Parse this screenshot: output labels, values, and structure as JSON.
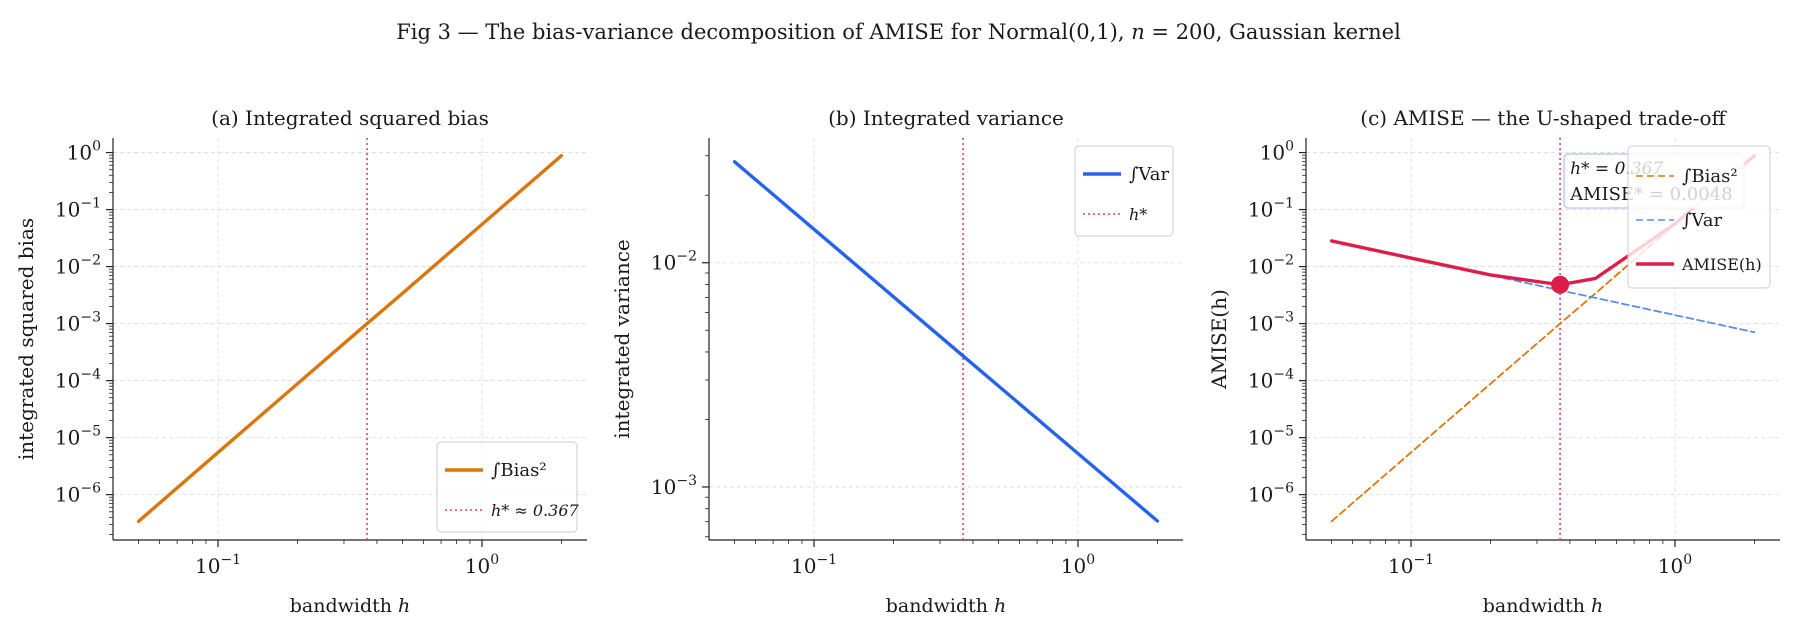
{
  "figure": {
    "suptitle": "Fig 3 — The bias-variance decomposition of AMISE for Normal(0,1), n = 200, Gaussian kernel"
  },
  "colors": {
    "bias": "#d9770e",
    "variance": "#2563eb",
    "amise": "#dc1e4a",
    "hstar": "#e0435b",
    "grid": "#d9d9d9"
  },
  "chart_data": [
    {
      "type": "line",
      "title": "(a) Integrated squared bias",
      "xlabel": "bandwidth h",
      "ylabel": "integrated squared bias",
      "xscale": "log",
      "yscale": "log",
      "xlim": [
        0.04,
        2.5
      ],
      "ylim": [
        1.6e-07,
        1.8
      ],
      "xticks": [
        "10^-1",
        "10^0"
      ],
      "yticks": [
        "10^-6",
        "10^-5",
        "10^-4",
        "10^-3",
        "10^-2",
        "10^-1",
        "10^0"
      ],
      "grid": true,
      "legend_position": "lower right",
      "series": [
        {
          "name": "∫Bias²",
          "style": "solid",
          "x": [
            0.05,
            0.1,
            0.2,
            0.367,
            0.5,
            1.0,
            2.0
          ],
          "y": [
            3.4e-07,
            5.5e-06,
            8.8e-05,
            0.001,
            0.0034,
            0.055,
            0.88
          ]
        }
      ],
      "vline": {
        "name": "h* ≈ 0.367",
        "x": 0.367
      }
    },
    {
      "type": "line",
      "title": "(b) Integrated variance",
      "xlabel": "bandwidth h",
      "ylabel": "integrated variance",
      "xscale": "log",
      "yscale": "log",
      "xlim": [
        0.04,
        2.5
      ],
      "ylim": [
        0.00058,
        0.036
      ],
      "xticks": [
        "10^-1",
        "10^0"
      ],
      "yticks": [
        "10^-3",
        "10^-2"
      ],
      "grid": true,
      "legend_position": "upper right",
      "series": [
        {
          "name": "∫Var",
          "style": "solid",
          "x": [
            0.05,
            0.1,
            0.2,
            0.367,
            0.5,
            1.0,
            2.0
          ],
          "y": [
            0.0282,
            0.0141,
            0.00705,
            0.00384,
            0.00282,
            0.00141,
            0.000705
          ]
        }
      ],
      "vline": {
        "name": "h*",
        "x": 0.367
      }
    },
    {
      "type": "line",
      "title": "(c) AMISE — the U-shaped trade-off",
      "xlabel": "bandwidth h",
      "ylabel": "AMISE(h)",
      "xscale": "log",
      "yscale": "log",
      "xlim": [
        0.04,
        2.5
      ],
      "ylim": [
        1.6e-07,
        1.8
      ],
      "xticks": [
        "10^-1",
        "10^0"
      ],
      "yticks": [
        "10^-6",
        "10^-5",
        "10^-4",
        "10^-3",
        "10^-2",
        "10^-1",
        "10^0"
      ],
      "grid": true,
      "legend_position": "upper right",
      "series": [
        {
          "name": "∫Bias²",
          "style": "dashed",
          "x": [
            0.05,
            0.1,
            0.2,
            0.367,
            0.5,
            1.0,
            2.0
          ],
          "y": [
            3.4e-07,
            5.5e-06,
            8.8e-05,
            0.001,
            0.0034,
            0.055,
            0.88
          ]
        },
        {
          "name": "∫Var",
          "style": "dashed",
          "x": [
            0.05,
            0.1,
            0.2,
            0.367,
            0.5,
            1.0,
            2.0
          ],
          "y": [
            0.0282,
            0.0141,
            0.00705,
            0.00384,
            0.00282,
            0.00141,
            0.000705
          ]
        },
        {
          "name": "AMISE(h)",
          "style": "solid",
          "x": [
            0.05,
            0.1,
            0.2,
            0.367,
            0.5,
            1.0,
            2.0
          ],
          "y": [
            0.0282,
            0.0141,
            0.00714,
            0.0048,
            0.0062,
            0.0564,
            0.881
          ]
        }
      ],
      "vline": {
        "name": "",
        "x": 0.367
      },
      "marker": {
        "x": 0.367,
        "y": 0.0048
      },
      "annotation": [
        "h* = 0.367",
        "AMISE* = 0.0048"
      ]
    }
  ]
}
